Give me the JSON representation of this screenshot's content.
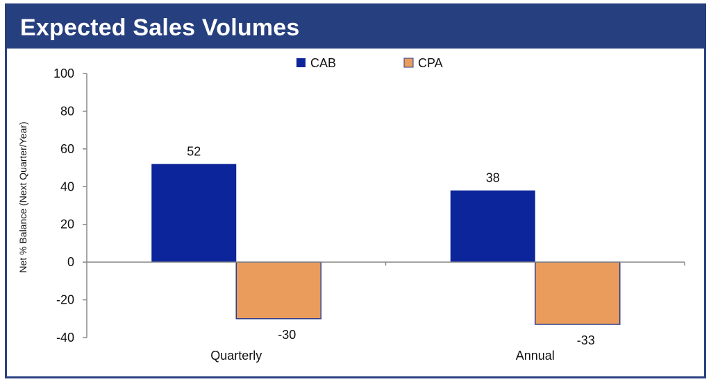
{
  "header": {
    "title": "Expected Sales Volumes"
  },
  "colors": {
    "header_bg": "#263f7e",
    "cab": "#0c259a",
    "cpa": "#e99c5b",
    "cpa_border": "#2a3d8c",
    "axis": "#888888"
  },
  "chart_data": {
    "type": "bar",
    "title": "Expected Sales Volumes",
    "categories": [
      "Quarterly",
      "Annual"
    ],
    "series": [
      {
        "name": "CAB",
        "values": [
          52,
          38
        ]
      },
      {
        "name": "CPA",
        "values": [
          -30,
          -33
        ]
      }
    ],
    "xlabel": "",
    "ylabel": "Net % Balance (Next  Quarter/Year)",
    "ylim": [
      -40,
      100
    ],
    "yticks": [
      100,
      80,
      60,
      40,
      20,
      0,
      -20,
      -40
    ],
    "grid": false,
    "legend": "top-center",
    "data_labels": true
  }
}
